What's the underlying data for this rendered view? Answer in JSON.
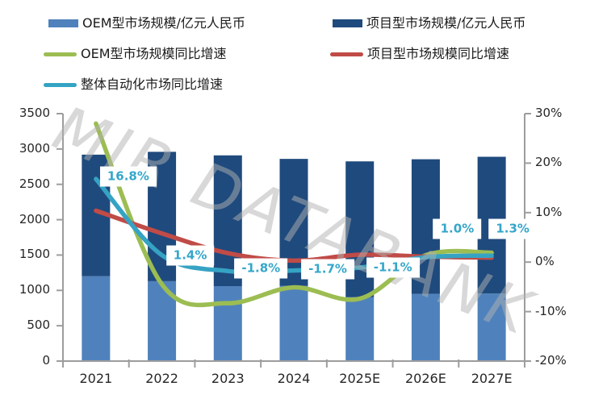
{
  "legend": {
    "items": [
      {
        "label": "OEM型市场规模/亿元人民币",
        "swatch": "bar",
        "color": "#4F82BC"
      },
      {
        "label": "项目型市场规模/亿元人民币",
        "swatch": "bar",
        "color": "#1F4A7D"
      },
      {
        "label": "OEM型市场规模同比增速",
        "swatch": "line",
        "color": "#9CBD52"
      },
      {
        "label": "项目型市场规模同比增速",
        "swatch": "line",
        "color": "#C04B47"
      },
      {
        "label": "整体自动化市场同比增速",
        "swatch": "line",
        "color": "#35A3C3"
      }
    ]
  },
  "watermark": "MIR DATABANK",
  "chart_data": {
    "type": "combo-stacked-bar-line",
    "categories": [
      "2021",
      "2022",
      "2023",
      "2024",
      "2025E",
      "2026E",
      "2027E"
    ],
    "bar_series": [
      {
        "name": "OEM型市场规模/亿元人民币",
        "axis": "left",
        "color": "#4F82BC",
        "values": [
          1200,
          1130,
          1060,
          1065,
          905,
          950,
          955
        ]
      },
      {
        "name": "项目型市场规模/亿元人民币",
        "axis": "left",
        "color": "#1F4A7D",
        "values": [
          1720,
          1830,
          1850,
          1795,
          1920,
          1905,
          1935
        ]
      }
    ],
    "line_series": [
      {
        "name": "OEM型市场规模同比增速",
        "axis": "right",
        "color": "#9CBD52",
        "values": [
          28.0,
          -4.5,
          -8.3,
          -5.1,
          -7.4,
          1.4,
          1.9
        ]
      },
      {
        "name": "项目型市场规模同比增速",
        "axis": "right",
        "color": "#C04B47",
        "values": [
          10.4,
          5.8,
          1.8,
          0.3,
          1.5,
          1.1,
          0.9
        ]
      },
      {
        "name": "整体自动化市场同比增速",
        "axis": "right",
        "color": "#35A3C3",
        "values": [
          16.8,
          1.4,
          -1.8,
          -1.7,
          -1.1,
          1.0,
          1.3
        ]
      }
    ],
    "data_labels": {
      "series": "整体自动化市场同比增速",
      "text_color": "#35A6CA",
      "values": [
        "16.8%",
        "1.4%",
        "-1.8%",
        "-1.7%",
        "-1.1%",
        "1.0%",
        "1.3%"
      ]
    },
    "left_axis": {
      "min": 0,
      "max": 3500,
      "step": 500,
      "ticks": [
        "0",
        "500",
        "1000",
        "1500",
        "2000",
        "2500",
        "3000",
        "3500"
      ]
    },
    "right_axis": {
      "min": -20,
      "max": 30,
      "step": 10,
      "ticks": [
        "-20%",
        "-10%",
        "0%",
        "10%",
        "20%",
        "30%"
      ]
    },
    "grid": false,
    "legend_position": "top-left",
    "axis_color": "#9d9d9d"
  }
}
